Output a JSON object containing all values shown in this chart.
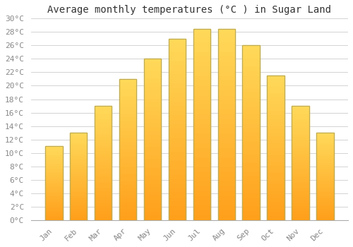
{
  "title": "Average monthly temperatures (°C ) in Sugar Land",
  "months": [
    "Jan",
    "Feb",
    "Mar",
    "Apr",
    "May",
    "Jun",
    "Jul",
    "Aug",
    "Sep",
    "Oct",
    "Nov",
    "Dec"
  ],
  "values": [
    11,
    13,
    17,
    21,
    24,
    27,
    28.5,
    28.5,
    26,
    21.5,
    17,
    13
  ],
  "bar_color_top": "#FFCC44",
  "bar_color_bottom": "#FF9900",
  "bar_edge_color": "#BBAA55",
  "background_color": "#FFFFFF",
  "grid_color": "#CCCCCC",
  "ylim": [
    0,
    30
  ],
  "ytick_step": 2,
  "title_fontsize": 10,
  "tick_fontsize": 8,
  "font_family": "monospace"
}
